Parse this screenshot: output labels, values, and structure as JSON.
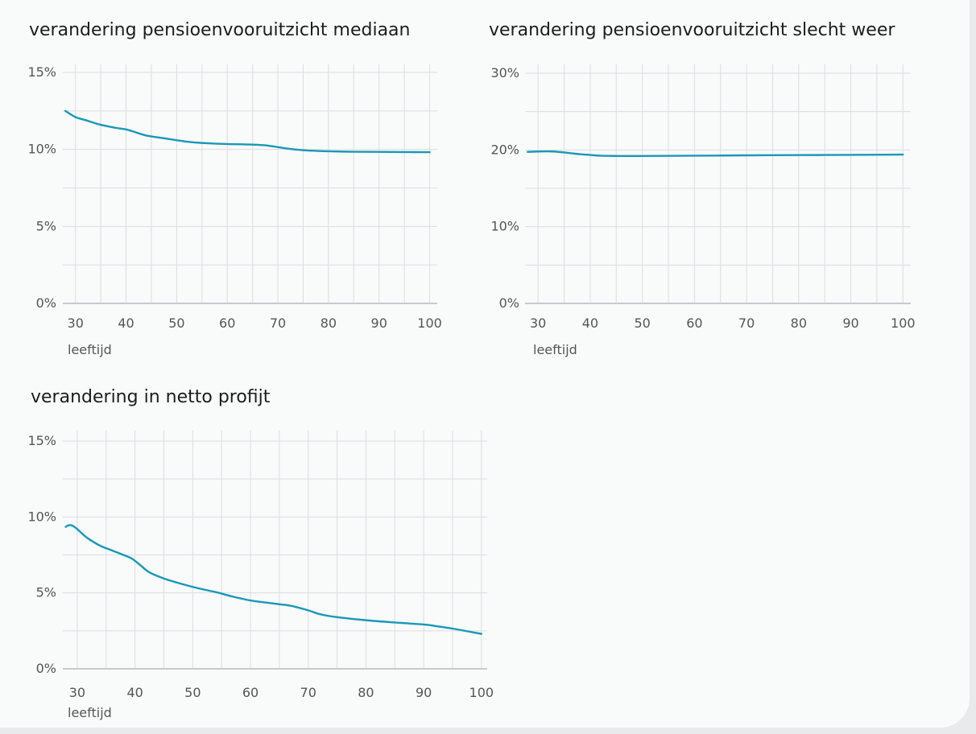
{
  "chart_data": [
    {
      "type": "line",
      "title": "verandering pensioenvooruitzicht mediaan",
      "xlabel": "leeftijd",
      "ylabel": "",
      "xlim": [
        27.5,
        101.5
      ],
      "ylim": [
        0,
        15
      ],
      "xticks": [
        30,
        40,
        50,
        60,
        70,
        80,
        90,
        100
      ],
      "xtick_labels": [
        "30",
        "40",
        "50",
        "60",
        "70",
        "80",
        "90",
        "100"
      ],
      "yticks": [
        0,
        5,
        10,
        15
      ],
      "ytick_labels": [
        "0%",
        "5%",
        "10%",
        "15%"
      ],
      "grid": true,
      "series": [
        {
          "color": "#1998b8",
          "x": [
            28,
            30,
            32,
            35,
            38,
            40,
            42,
            44,
            47,
            50,
            52,
            55,
            60,
            63,
            66,
            68,
            70,
            72,
            75,
            78,
            80,
            85,
            90,
            95,
            100
          ],
          "y": [
            12.5,
            12.1,
            11.9,
            11.6,
            11.4,
            11.3,
            11.1,
            10.9,
            10.75,
            10.6,
            10.5,
            10.42,
            10.35,
            10.33,
            10.3,
            10.25,
            10.15,
            10.05,
            9.95,
            9.9,
            9.88,
            9.85,
            9.84,
            9.83,
            9.82
          ]
        }
      ]
    },
    {
      "type": "line",
      "title": "verandering pensioenvooruitzicht slecht weer",
      "xlabel": "leeftijd",
      "ylabel": "",
      "xlim": [
        27.5,
        101.5
      ],
      "ylim": [
        0,
        30
      ],
      "xticks": [
        30,
        40,
        50,
        60,
        70,
        80,
        90,
        100
      ],
      "xtick_labels": [
        "30",
        "40",
        "50",
        "60",
        "70",
        "80",
        "90",
        "100"
      ],
      "yticks": [
        0,
        10,
        20,
        30
      ],
      "ytick_labels": [
        "0%",
        "10%",
        "20%",
        "30%"
      ],
      "grid": true,
      "series": [
        {
          "color": "#1998b8",
          "x": [
            28,
            30,
            33,
            36,
            38,
            40,
            42,
            45,
            50,
            60,
            70,
            80,
            90,
            100
          ],
          "y": [
            19.75,
            19.8,
            19.8,
            19.6,
            19.45,
            19.35,
            19.25,
            19.22,
            19.22,
            19.25,
            19.3,
            19.33,
            19.36,
            19.4
          ]
        }
      ]
    },
    {
      "type": "line",
      "title": "verandering in netto profijt",
      "xlabel": "leeftijd",
      "ylabel": "",
      "xlim": [
        27.5,
        101
      ],
      "ylim": [
        0,
        15
      ],
      "xticks": [
        30,
        40,
        50,
        60,
        70,
        80,
        90,
        100
      ],
      "xtick_labels": [
        "30",
        "40",
        "50",
        "60",
        "70",
        "80",
        "90",
        "100"
      ],
      "yticks": [
        0,
        5,
        10,
        15
      ],
      "ytick_labels": [
        "0%",
        "5%",
        "10%",
        "15%"
      ],
      "grid": true,
      "series": [
        {
          "color": "#1998b8",
          "x": [
            28,
            28.5,
            29,
            29.5,
            30,
            31,
            32,
            34,
            36,
            38,
            39.5,
            41,
            42.5,
            45,
            48,
            51,
            54,
            57,
            60,
            63,
            65,
            67,
            70,
            72,
            75,
            80,
            85,
            90,
            92,
            95,
            100
          ],
          "y": [
            9.35,
            9.45,
            9.45,
            9.35,
            9.2,
            8.85,
            8.55,
            8.1,
            7.8,
            7.5,
            7.25,
            6.8,
            6.35,
            5.95,
            5.6,
            5.3,
            5.05,
            4.75,
            4.5,
            4.35,
            4.25,
            4.15,
            3.85,
            3.6,
            3.4,
            3.2,
            3.05,
            2.92,
            2.82,
            2.65,
            2.3
          ]
        }
      ]
    }
  ]
}
